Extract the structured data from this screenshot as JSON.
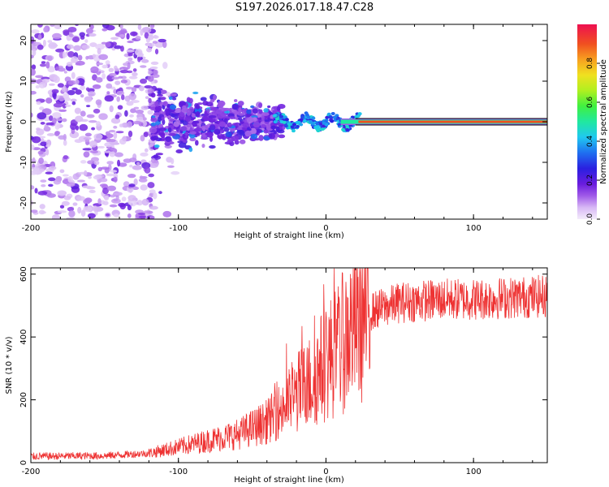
{
  "title": "S197.2026.017.18.47.C28",
  "chart_data": [
    {
      "type": "heatmap",
      "xlabel": "Height of straight line (km)",
      "ylabel": "Frequency (Hz)",
      "xlim": [
        -200,
        150
      ],
      "ylim": [
        -24,
        24
      ],
      "xticks": [
        -200,
        -100,
        0,
        100
      ],
      "yticks": [
        -20,
        -10,
        0,
        10,
        20
      ],
      "colorbar": {
        "label": "Normalized spectral amplitude",
        "ticks": [
          0.0,
          0.2,
          0.4,
          0.6,
          0.8
        ],
        "tick_labels": [
          "0.0",
          "0.2",
          "0.4",
          "0.6",
          "0.8"
        ],
        "range": [
          0,
          1
        ]
      },
      "regions": [
        {
          "name": "diffuse noise",
          "x": [
            -200,
            -115
          ],
          "freq_spread": 24,
          "amplitude": 0.08
        },
        {
          "name": "clustered blobs",
          "x": [
            -115,
            -30
          ],
          "freq_spread": 9,
          "amplitude": 0.2
        },
        {
          "name": "wavy trace",
          "x": [
            -30,
            20
          ],
          "freq_spread": 3,
          "amplitude": 0.35
        },
        {
          "name": "steady line",
          "x": [
            20,
            150
          ],
          "freq": 0,
          "amplitude": 0.95
        }
      ]
    },
    {
      "type": "line",
      "xlabel": "Height of straight line (km)",
      "ylabel": "SNR (10 * v/v)",
      "xlim": [
        -200,
        150
      ],
      "ylim": [
        0,
        620
      ],
      "xticks": [
        -200,
        -100,
        0,
        100
      ],
      "yticks": [
        0,
        200,
        400,
        600
      ],
      "series": [
        {
          "name": "SNR",
          "color": "#ee3333",
          "x": [
            -200,
            -150,
            -120,
            -100,
            -80,
            -60,
            -40,
            -30,
            -20,
            -10,
            0,
            10,
            20,
            30,
            50,
            80,
            100,
            150
          ],
          "y": [
            20,
            22,
            30,
            50,
            70,
            90,
            130,
            170,
            220,
            260,
            320,
            370,
            450,
            480,
            510,
            520,
            520,
            530
          ]
        }
      ]
    }
  ]
}
